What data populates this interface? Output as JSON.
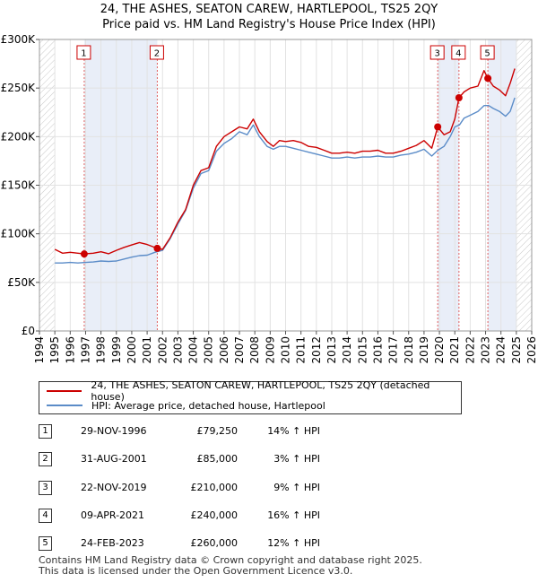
{
  "title_line1": "24, THE ASHES, SEATON CAREW, HARTLEPOOL, TS25 2QY",
  "title_line2": "Price paid vs. HM Land Registry's House Price Index (HPI)",
  "chart_data": {
    "type": "line",
    "title": "24, THE ASHES, SEATON CAREW, HARTLEPOOL, TS25 2QY — Price paid vs. HM Land Registry's House Price Index (HPI)",
    "xlim": [
      1994,
      2026
    ],
    "ylim": [
      0,
      300000
    ],
    "x_ticks": [
      "1994",
      "1995",
      "1996",
      "1997",
      "1998",
      "1999",
      "2000",
      "2001",
      "2002",
      "2003",
      "2004",
      "2005",
      "2006",
      "2007",
      "2008",
      "2009",
      "2010",
      "2011",
      "2012",
      "2013",
      "2014",
      "2015",
      "2016",
      "2017",
      "2018",
      "2019",
      "2020",
      "2021",
      "2022",
      "2023",
      "2024",
      "2025",
      "2026"
    ],
    "y_ticks": [
      {
        "value": 0,
        "label": "£0"
      },
      {
        "value": 50000,
        "label": "£50K"
      },
      {
        "value": 100000,
        "label": "£100K"
      },
      {
        "value": 150000,
        "label": "£150K"
      },
      {
        "value": 200000,
        "label": "£200K"
      },
      {
        "value": 250000,
        "label": "£250K"
      },
      {
        "value": 300000,
        "label": "£300K"
      }
    ],
    "hatch_before": 1995.0,
    "hatch_after": 2025.0,
    "shaded_periods": [
      [
        1996.91,
        2001.66
      ],
      [
        2019.89,
        2021.27
      ],
      [
        2023.15,
        2025.0
      ]
    ],
    "series": [
      {
        "name": "24, THE ASHES, SEATON CAREW, HARTLEPOOL, TS25 2QY (detached house)",
        "color": "#cc0000",
        "x": [
          1995.0,
          1995.5,
          1996.0,
          1996.5,
          1996.91,
          1997.5,
          1998.0,
          1998.5,
          1999.0,
          1999.5,
          2000.0,
          2000.5,
          2001.0,
          2001.66,
          2002.0,
          2002.5,
          2003.0,
          2003.5,
          2004.0,
          2004.5,
          2005.0,
          2005.5,
          2006.0,
          2006.5,
          2007.0,
          2007.5,
          2007.9,
          2008.3,
          2008.8,
          2009.2,
          2009.6,
          2010.0,
          2010.5,
          2011.0,
          2011.5,
          2012.0,
          2012.5,
          2013.0,
          2013.5,
          2014.0,
          2014.5,
          2015.0,
          2015.5,
          2016.0,
          2016.5,
          2017.0,
          2017.5,
          2018.0,
          2018.5,
          2019.0,
          2019.5,
          2019.89,
          2020.3,
          2020.7,
          2021.0,
          2021.27,
          2021.6,
          2022.0,
          2022.5,
          2022.9,
          2023.15,
          2023.5,
          2023.9,
          2024.3,
          2024.6,
          2024.9
        ],
        "y": [
          84000,
          80000,
          81000,
          80000,
          79250,
          80000,
          81500,
          79500,
          83000,
          86000,
          88500,
          91000,
          89000,
          85000,
          84000,
          96000,
          112000,
          125000,
          150000,
          165000,
          168000,
          190000,
          200000,
          205000,
          210000,
          208000,
          218000,
          205000,
          195000,
          190000,
          196000,
          195000,
          196000,
          194000,
          190000,
          189000,
          186000,
          183000,
          183000,
          184000,
          183000,
          185000,
          185000,
          186000,
          183000,
          183000,
          185000,
          188000,
          191000,
          196000,
          188000,
          210000,
          202000,
          205000,
          218000,
          240000,
          246000,
          250000,
          252000,
          268000,
          260000,
          252000,
          248000,
          242000,
          255000,
          270000
        ]
      },
      {
        "name": "HPI: Average price, detached house, Hartlepool",
        "color": "#5b8cc8",
        "x": [
          1995.0,
          1995.5,
          1996.0,
          1996.5,
          1997.0,
          1997.5,
          1998.0,
          1998.5,
          1999.0,
          1999.5,
          2000.0,
          2000.5,
          2001.0,
          2001.5,
          2002.0,
          2002.5,
          2003.0,
          2003.5,
          2004.0,
          2004.5,
          2005.0,
          2005.5,
          2006.0,
          2006.5,
          2007.0,
          2007.5,
          2007.9,
          2008.3,
          2008.8,
          2009.2,
          2009.6,
          2010.0,
          2010.5,
          2011.0,
          2011.5,
          2012.0,
          2012.5,
          2013.0,
          2013.5,
          2014.0,
          2014.5,
          2015.0,
          2015.5,
          2016.0,
          2016.5,
          2017.0,
          2017.5,
          2018.0,
          2018.5,
          2019.0,
          2019.5,
          2019.9,
          2020.3,
          2020.7,
          2021.0,
          2021.3,
          2021.6,
          2022.0,
          2022.5,
          2022.9,
          2023.2,
          2023.5,
          2023.9,
          2024.3,
          2024.6,
          2024.9
        ],
        "y": [
          70000,
          70000,
          70500,
          70000,
          70500,
          71000,
          72000,
          71500,
          72000,
          74000,
          76000,
          77500,
          78000,
          81000,
          83000,
          95000,
          110000,
          124000,
          147000,
          162000,
          165000,
          185000,
          193000,
          198000,
          205000,
          202000,
          212000,
          200000,
          190000,
          187000,
          190000,
          190000,
          188000,
          186000,
          184000,
          182000,
          180000,
          178000,
          178000,
          179000,
          178000,
          179000,
          179000,
          180000,
          179000,
          179000,
          181000,
          182000,
          184000,
          187000,
          180000,
          186000,
          190000,
          200000,
          210000,
          212000,
          219000,
          222000,
          226000,
          232000,
          232000,
          229000,
          226000,
          221000,
          226000,
          240000
        ]
      }
    ],
    "markers": [
      {
        "label": "1",
        "x": 1996.91,
        "y": 79250
      },
      {
        "label": "2",
        "x": 2001.66,
        "y": 85000
      },
      {
        "label": "3",
        "x": 2019.89,
        "y": 210000
      },
      {
        "label": "4",
        "x": 2021.27,
        "y": 240000
      },
      {
        "label": "5",
        "x": 2023.15,
        "y": 260000
      }
    ]
  },
  "legend": [
    {
      "label": "24, THE ASHES, SEATON CAREW, HARTLEPOOL, TS25 2QY (detached house)",
      "color": "#cc0000"
    },
    {
      "label": "HPI: Average price, detached house, Hartlepool",
      "color": "#5b8cc8"
    }
  ],
  "sales": [
    {
      "num": "1",
      "date": "29-NOV-1996",
      "price": "£79,250",
      "hpi": "14% ↑ HPI"
    },
    {
      "num": "2",
      "date": "31-AUG-2001",
      "price": "£85,000",
      "hpi": "3% ↑ HPI"
    },
    {
      "num": "3",
      "date": "22-NOV-2019",
      "price": "£210,000",
      "hpi": "9% ↑ HPI"
    },
    {
      "num": "4",
      "date": "09-APR-2021",
      "price": "£240,000",
      "hpi": "16% ↑ HPI"
    },
    {
      "num": "5",
      "date": "24-FEB-2023",
      "price": "£260,000",
      "hpi": "12% ↑ HPI"
    }
  ],
  "footer_line1": "Contains HM Land Registry data © Crown copyright and database right 2025.",
  "footer_line2": "This data is licensed under the Open Government Licence v3.0."
}
